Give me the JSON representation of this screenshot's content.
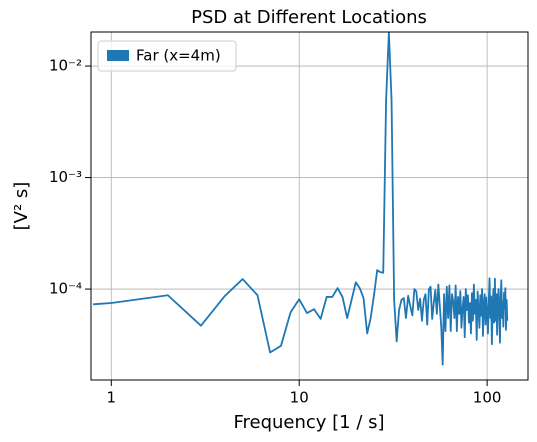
{
  "chart_data": {
    "type": "line",
    "title": "PSD at Different Locations",
    "xlabel": "Frequency [1 / s]",
    "ylabel": "[V² s]",
    "xscale": "log",
    "yscale": "log",
    "grid": true,
    "legend": "upper left",
    "xlim": [
      0.78,
      165
    ],
    "ylim": [
      1.53e-05,
      0.0202
    ],
    "xticks": [
      1,
      10,
      100
    ],
    "yticks": [
      {
        "value": 0.0001,
        "label": "10⁻⁴"
      },
      {
        "value": 0.001,
        "label": "10⁻³"
      },
      {
        "value": 0.01,
        "label": "10⁻²"
      }
    ],
    "x": [
      0.8,
      1,
      2,
      3,
      4,
      5,
      6,
      7,
      8,
      9,
      10,
      11,
      12,
      13,
      14,
      15,
      16,
      17,
      18,
      19,
      20,
      21,
      22,
      23,
      24,
      25,
      26,
      27,
      28,
      29,
      30,
      31,
      32,
      33,
      34,
      35,
      36,
      37,
      38,
      39,
      40,
      41,
      42,
      43,
      44,
      45,
      46,
      47,
      48,
      49,
      50,
      51,
      52,
      53,
      54,
      55,
      56,
      57,
      58,
      59,
      60,
      61,
      62,
      63,
      64,
      65,
      66,
      67,
      68,
      69,
      70,
      71,
      72,
      73,
      74,
      75,
      76,
      77,
      78,
      79,
      80,
      81,
      82,
      83,
      84,
      85,
      86,
      87,
      88,
      89,
      90,
      91,
      92,
      93,
      94,
      95,
      96,
      97,
      98,
      99,
      100,
      101,
      102,
      103,
      104,
      105,
      106,
      107,
      108,
      109,
      110,
      111,
      112,
      113,
      114,
      115,
      116,
      117,
      118,
      119,
      120,
      121,
      122,
      123,
      124,
      125,
      126,
      127,
      128
    ],
    "series": [
      {
        "name": "Far (x=4m)",
        "color": "#1f77b4",
        "values": [
          7.3e-05,
          7.5e-05,
          8.8e-05,
          4.7e-05,
          8.6e-05,
          0.000123,
          8.8e-05,
          2.7e-05,
          3.1e-05,
          6.2e-05,
          8.1e-05,
          6.1e-05,
          6.6e-05,
          5.4e-05,
          8.5e-05,
          8.5e-05,
          0.000102,
          8.5e-05,
          5.5e-05,
          8e-05,
          0.000115,
          0.000102,
          8.3e-05,
          4e-05,
          5.5e-05,
          8.8e-05,
          0.000148,
          0.000142,
          0.00014,
          0.005,
          0.02,
          0.005,
          8e-05,
          3.4e-05,
          6.5e-05,
          8e-05,
          8.3e-05,
          5.5e-05,
          8.7e-05,
          7e-05,
          5.8e-05,
          0.0001,
          9.5e-05,
          6.5e-05,
          8.2e-05,
          5.2e-05,
          8e-05,
          9e-05,
          4.8e-05,
          0.0001,
          0.000105,
          5.4e-05,
          7.5e-05,
          9.8e-05,
          6e-05,
          0.00011,
          7e-05,
          4.6e-05,
          2.1e-05,
          9e-05,
          4.2e-05,
          0.000105,
          5.5e-05,
          0.000108,
          4.2e-05,
          9e-05,
          7.8e-05,
          5.5e-05,
          0.000108,
          4.2e-05,
          8.5e-05,
          6e-05,
          9.6e-05,
          4.5e-05,
          6.8e-05,
          8.5e-05,
          3.7e-05,
          0.0001,
          6.5e-05,
          8.8e-05,
          5e-05,
          7.5e-05,
          4e-05,
          9.2e-05,
          5.2e-05,
          0.00011,
          6e-05,
          8e-05,
          3.5e-05,
          9.5e-05,
          6.6e-05,
          4.5e-05,
          8.8e-05,
          5.8e-05,
          0.0001,
          3.8e-05,
          7.2e-05,
          9e-05,
          4.8e-05,
          8.4e-05,
          6.2e-05,
          4e-05,
          7.6e-05,
          0.000125,
          5.5e-05,
          8.6e-05,
          3.2e-05,
          7e-05,
          0.0001,
          5e-05,
          0.000124,
          5.2e-05,
          9e-05,
          3.9e-05,
          7.5e-05,
          0.0001,
          6.2e-05,
          3.3e-05,
          8.3e-05,
          0.00012,
          5.5e-05,
          7.8e-05,
          4.6e-05,
          9.3e-05,
          6.7e-05,
          0.000102,
          4.3e-05,
          8e-05,
          5.2e-05
        ]
      }
    ]
  }
}
